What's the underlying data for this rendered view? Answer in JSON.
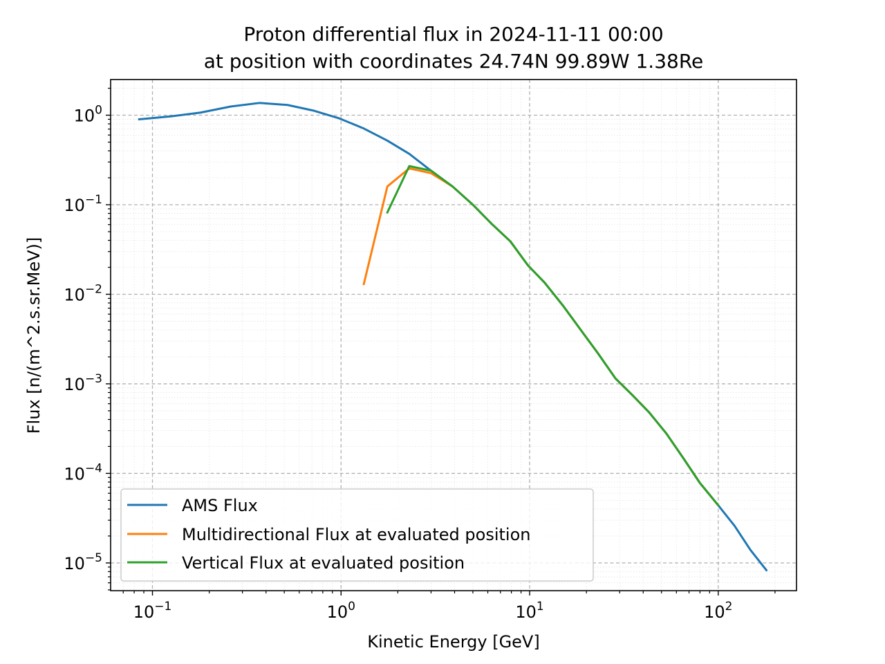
{
  "chart_data": {
    "type": "line",
    "title": [
      "Proton differential flux in 2024-11-11 00:00",
      "at position with coordinates 24.74N 99.89W 1.38Re"
    ],
    "xlabel": "Kinetic Energy [GeV]",
    "ylabel": "Flux [n/(m^2.s.sr.MeV)]",
    "xscale": "log",
    "yscale": "log",
    "xlim": [
      0.06,
      260
    ],
    "ylim": [
      4.9e-06,
      2.5
    ],
    "grid": true,
    "legend_position": "lower-left",
    "x_ticks": [
      {
        "base": "10",
        "exp": "−1",
        "value": 0.1
      },
      {
        "base": "10",
        "exp": "0",
        "value": 1
      },
      {
        "base": "10",
        "exp": "1",
        "value": 10
      },
      {
        "base": "10",
        "exp": "2",
        "value": 100
      }
    ],
    "y_ticks": [
      {
        "base": "10",
        "exp": "0",
        "value": 1
      },
      {
        "base": "10",
        "exp": "−1",
        "value": 0.1
      },
      {
        "base": "10",
        "exp": "−2",
        "value": 0.01
      },
      {
        "base": "10",
        "exp": "−3",
        "value": 0.001
      },
      {
        "base": "10",
        "exp": "−4",
        "value": 0.0001
      },
      {
        "base": "10",
        "exp": "−5",
        "value": 1e-05
      }
    ],
    "series": [
      {
        "name": "AMS Flux",
        "color": "#1f77b4",
        "x": [
          0.085,
          0.125,
          0.18,
          0.26,
          0.37,
          0.52,
          0.72,
          0.98,
          1.32,
          1.76,
          2.3,
          3.0,
          3.9,
          5.0,
          6.3,
          7.9,
          9.8,
          12.0,
          15.0,
          19.0,
          23.0,
          28.5,
          35.0,
          43.0,
          53.0,
          65.0,
          80.0,
          100.0,
          122.0,
          148.0,
          180.0
        ],
        "y": [
          0.9,
          0.97,
          1.07,
          1.25,
          1.37,
          1.3,
          1.12,
          0.92,
          0.71,
          0.52,
          0.37,
          0.24,
          0.16,
          0.1,
          0.061,
          0.039,
          0.021,
          0.0135,
          0.0075,
          0.0038,
          0.0022,
          0.00115,
          0.00075,
          0.00048,
          0.00028,
          0.00015,
          7.8e-05,
          4.4e-05,
          2.6e-05,
          1.4e-05,
          8.3e-06
        ]
      },
      {
        "name": "Multidirectional Flux at evaluated position",
        "color": "#ff7f0e",
        "x": [
          1.32,
          1.76,
          2.3,
          3.0,
          3.9,
          5.0,
          6.3,
          7.9,
          9.8,
          12.0,
          15.0,
          19.0,
          23.0,
          28.5,
          35.0,
          43.0,
          53.0,
          65.0,
          80.0,
          100.0
        ],
        "y": [
          0.013,
          0.16,
          0.255,
          0.225,
          0.16,
          0.1,
          0.061,
          0.039,
          0.021,
          0.0135,
          0.0075,
          0.0038,
          0.0022,
          0.00115,
          0.00075,
          0.00048,
          0.00028,
          0.00015,
          7.8e-05,
          4.4e-05
        ]
      },
      {
        "name": "Vertical Flux at evaluated position",
        "color": "#2ca02c",
        "x": [
          1.76,
          2.3,
          3.0,
          3.9,
          5.0,
          6.3,
          7.9,
          9.8,
          12.0,
          15.0,
          19.0,
          23.0,
          28.5,
          35.0,
          43.0,
          53.0,
          65.0,
          80.0,
          100.0
        ],
        "y": [
          0.082,
          0.27,
          0.24,
          0.16,
          0.1,
          0.061,
          0.039,
          0.021,
          0.0135,
          0.0075,
          0.0038,
          0.0022,
          0.00115,
          0.00075,
          0.00048,
          0.00028,
          0.00015,
          7.8e-05,
          4.4e-05
        ]
      }
    ]
  }
}
